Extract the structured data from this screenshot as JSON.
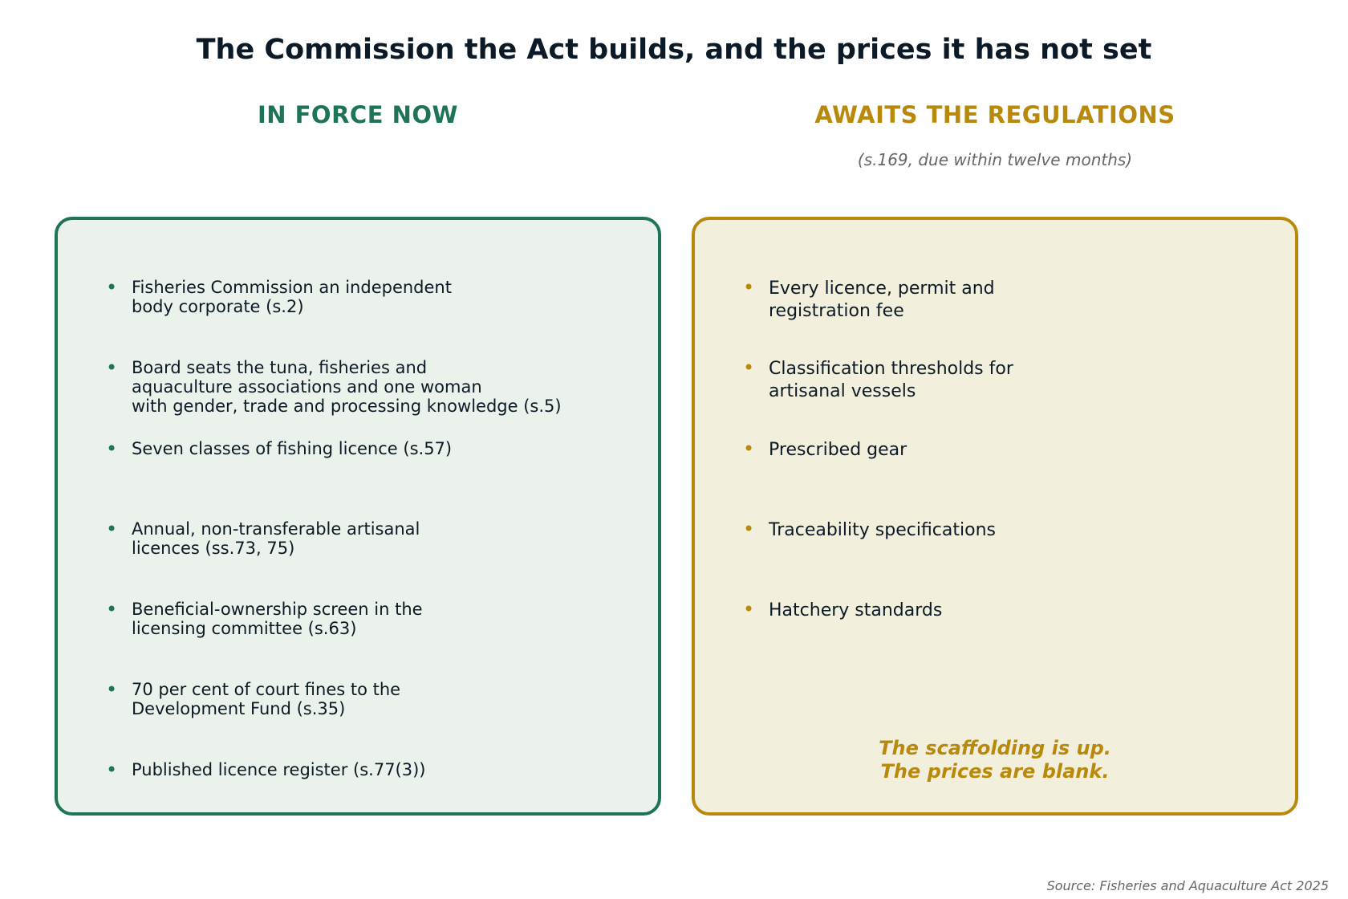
{
  "title": "The Commission the Act builds, and the prices it has not set",
  "left_column": {
    "heading": "IN FORCE NOW",
    "accent_color": "#1e7457",
    "items": [
      "Fisheries Commission an independent\nbody corporate (s.2)",
      "Board seats the tuna, fisheries and\naquaculture associations and one woman\nwith gender, trade and processing knowledge (s.5)",
      "Seven classes of fishing licence (s.57)",
      "Annual, non-transferable artisanal\nlicences (ss.73, 75)",
      "Beneficial-ownership screen in the\nlicensing committee (s.63)",
      "70 per cent of court fines to the\nDevelopment Fund (s.35)",
      "Published licence register (s.77(3))"
    ]
  },
  "right_column": {
    "heading": "AWAITS THE REGULATIONS",
    "subheading": "(s.169, due within twelve months)",
    "accent_color": "#b8890a",
    "items": [
      "Every licence, permit and\nregistration fee",
      "Classification thresholds for\nartisanal vessels",
      "Prescribed gear",
      "Traceability specifications",
      "Hatchery standards"
    ],
    "closing": "The scaffolding is up.\nThe prices are blank."
  },
  "source": "Source: Fisheries and Aquaculture Act 2025"
}
